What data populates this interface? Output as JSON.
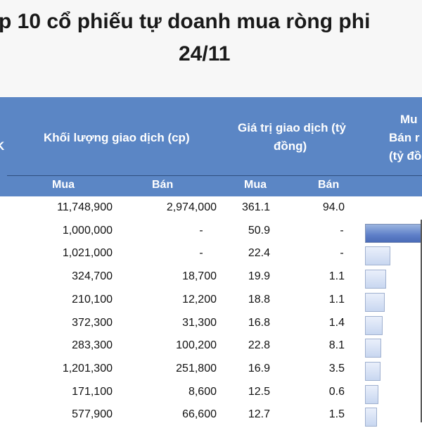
{
  "title": {
    "line1": "p 10 cổ phiếu tự doanh mua ròng phi",
    "line2": "24/11"
  },
  "header": {
    "left_fragment": "K",
    "volume": "Khối lượng giao dịch (cp)",
    "value_line1": "Giá trị giao dịch (tỷ",
    "value_line2": "đồng)",
    "net_line1": "Mu",
    "net_line2": "Bán r",
    "net_line3": "(tỷ đồ",
    "sub_buy_vol": "Mua",
    "sub_sell_vol": "Bán",
    "sub_buy_val": "Mua",
    "sub_sell_val": "Bán"
  },
  "rows": [
    {
      "buy_vol": "11,748,900",
      "sell_vol": "2,974,000",
      "buy_val": "361.1",
      "sell_val": "94.0",
      "net": null
    },
    {
      "buy_vol": "1,000,000",
      "sell_vol": "-",
      "buy_val": "50.9",
      "sell_val": "-",
      "net": 0.95
    },
    {
      "buy_vol": "1,021,000",
      "sell_vol": "-",
      "buy_val": "22.4",
      "sell_val": "-",
      "net": 0.42
    },
    {
      "buy_vol": "324,700",
      "sell_vol": "18,700",
      "buy_val": "19.9",
      "sell_val": "1.1",
      "net": 0.35
    },
    {
      "buy_vol": "210,100",
      "sell_vol": "12,200",
      "buy_val": "18.8",
      "sell_val": "1.1",
      "net": 0.33
    },
    {
      "buy_vol": "372,300",
      "sell_vol": "31,300",
      "buy_val": "16.8",
      "sell_val": "1.4",
      "net": 0.29
    },
    {
      "buy_vol": "283,300",
      "sell_vol": "100,200",
      "buy_val": "22.8",
      "sell_val": "8.1",
      "net": 0.27
    },
    {
      "buy_vol": "1,201,300",
      "sell_vol": "251,800",
      "buy_val": "16.9",
      "sell_val": "3.5",
      "net": 0.25
    },
    {
      "buy_vol": "171,100",
      "sell_vol": "8,600",
      "buy_val": "12.5",
      "sell_val": "0.6",
      "net": 0.22
    },
    {
      "buy_vol": "577,900",
      "sell_vol": "66,600",
      "buy_val": "12.7",
      "sell_val": "1.5",
      "net": 0.2
    }
  ]
}
